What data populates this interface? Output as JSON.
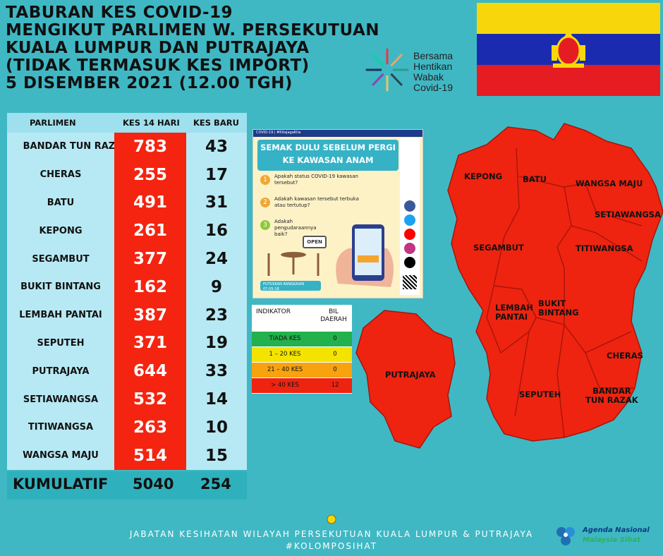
{
  "title_lines": [
    "TABURAN KES COVID-19",
    "MENGIKUT PARLIMEN W. PERSEKUTUAN",
    "KUALA LUMPUR DAN PUTRAJAYA",
    "(TIDAK TERMASUK KES IMPORT)",
    "5 DISEMBER 2021 (12.00 TGH)"
  ],
  "campaign_lines": [
    "Bersama",
    "Hentikan",
    "Wabak",
    "Covid-19"
  ],
  "table": {
    "headers": [
      "PARLIMEN",
      "KES 14 HARI",
      "KES BARU"
    ],
    "rows": [
      {
        "name": "BANDAR TUN RAZAK",
        "cases14": "783",
        "new": "43"
      },
      {
        "name": "CHERAS",
        "cases14": "255",
        "new": "17"
      },
      {
        "name": "BATU",
        "cases14": "491",
        "new": "31"
      },
      {
        "name": "KEPONG",
        "cases14": "261",
        "new": "16"
      },
      {
        "name": "SEGAMBUT",
        "cases14": "377",
        "new": "24"
      },
      {
        "name": "BUKIT BINTANG",
        "cases14": "162",
        "new": "9"
      },
      {
        "name": "LEMBAH PANTAI",
        "cases14": "387",
        "new": "23"
      },
      {
        "name": "SEPUTEH",
        "cases14": "371",
        "new": "19"
      },
      {
        "name": "PUTRAJAYA",
        "cases14": "644",
        "new": "33"
      },
      {
        "name": "SETIAWANGSA",
        "cases14": "532",
        "new": "14"
      },
      {
        "name": "TITIWANGSA",
        "cases14": "263",
        "new": "10"
      },
      {
        "name": "WANGSA MAJU",
        "cases14": "514",
        "new": "15"
      }
    ],
    "total": {
      "label": "KUMULATIF",
      "cases14": "5040",
      "new": "254"
    }
  },
  "poster": {
    "tag": "COVID-19 | #KitaJagaKita",
    "heading1": "SEMAK DULU SEBELUM PERGI",
    "heading2": "KE KAWASAN ANAM",
    "q1": "Apakah status COVID-19 kawasan tersebut?",
    "q2": "Adakah kawasan tersebut terbuka atau tertutup?",
    "q3": "Adakah pengudaraannya baik?",
    "open_sign": "OPEN",
    "footer_tag": "PUTUSKAN RANGKAIAN",
    "footer_date": "07-05-18"
  },
  "legend": {
    "headers": [
      "INDIKATOR",
      "BIL DAERAH"
    ],
    "rows": [
      {
        "label": "TIADA KES",
        "count": "0",
        "color": "#22b14c"
      },
      {
        "label": "1 – 20 KES",
        "count": "0",
        "color": "#f4e300"
      },
      {
        "label": "21 – 40 KES",
        "count": "0",
        "color": "#f7a20f"
      },
      {
        "label": "> 40 KES",
        "count": "12",
        "color": "#ee2410"
      }
    ]
  },
  "map_labels": {
    "kepong": "KEPONG",
    "batu": "BATU",
    "wangsa_maju": "WANGSA MAJU",
    "setiawangsa": "SETIAWANGSA",
    "segambut": "SEGAMBUT",
    "titiwangsa": "TITIWANGSA",
    "lembah_pantai_1": "LEMBAH",
    "lembah_pantai_2": "PANTAI",
    "bukit_bintang_1": "BUKIT",
    "bukit_bintang_2": "BINTANG",
    "cheras": "CHERAS",
    "seputeh": "SEPUTEH",
    "bandar_tun_razak_1": "BANDAR",
    "bandar_tun_razak_2": "TUN RAZAK",
    "putrajaya": "PUTRAJAYA"
  },
  "footer": {
    "line1": "JABATAN KESIHATAN WILAYAH PERSEKUTUAN KUALA LUMPUR & PUTRAJAYA",
    "line2": "#KOLOMPOSIHAT"
  },
  "agenda": {
    "line1": "Agenda Nasional",
    "line2": "Malaysia Sihat"
  },
  "colors": {
    "background": "#3fb8c4",
    "map_red": "#ee2410",
    "table_red": "#f42410",
    "table_light": "#b7e9f4"
  }
}
